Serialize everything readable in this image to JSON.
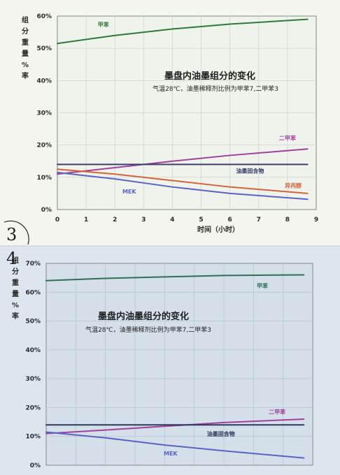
{
  "page": {
    "figure_marker_1": "3",
    "figure_marker_2": "4"
  },
  "chart_data": [
    {
      "type": "line",
      "ylabel": "组分重量%率",
      "xlabel": "时间（小时）",
      "ylim": [
        0,
        60
      ],
      "xlim": [
        0,
        9
      ],
      "yticks": [
        "0%",
        "10%",
        "20%",
        "30%",
        "40%",
        "50%",
        "60%"
      ],
      "xticks": [
        "0",
        "1",
        "2",
        "3",
        "4",
        "5",
        "6",
        "7",
        "8",
        "9"
      ],
      "grid": true,
      "annotation_title": "墨盘内油墨组分的变化",
      "annotation_subtitle": "气温28℃，油墨稀释剂比例为甲苯7,二甲苯3",
      "series": [
        {
          "name": "甲苯",
          "color": "#2e7a3a",
          "x": [
            0,
            2,
            4,
            6,
            8.7
          ],
          "y": [
            51.5,
            54,
            56,
            57.5,
            59
          ]
        },
        {
          "name": "二甲苯",
          "color": "#a0409a",
          "x": [
            0,
            2,
            4,
            6,
            8.7
          ],
          "y": [
            11,
            13,
            15,
            16.8,
            18.8
          ]
        },
        {
          "name": "油墨固含物",
          "color": "#3a3f6e",
          "x": [
            0,
            8.7
          ],
          "y": [
            14,
            14
          ]
        },
        {
          "name": "异丙醇",
          "color": "#d2643a",
          "x": [
            0,
            2,
            4,
            6,
            8.7
          ],
          "y": [
            12.5,
            11,
            9,
            7,
            5
          ]
        },
        {
          "name": "MEK",
          "color": "#5a62c8",
          "x": [
            0,
            2,
            4,
            6,
            8.7
          ],
          "y": [
            11.5,
            9.5,
            7,
            5,
            3.2
          ]
        }
      ],
      "label_positions": [
        {
          "series": "甲苯",
          "x": 1.6,
          "y": 56.8
        },
        {
          "series": "二甲苯",
          "x": 8.0,
          "y": 21.6
        },
        {
          "series": "油墨固含物",
          "x": 6.7,
          "y": 11.4
        },
        {
          "series": "异丙醇",
          "x": 8.2,
          "y": 6.8
        },
        {
          "series": "MEK",
          "x": 2.5,
          "y": 5.0
        }
      ]
    },
    {
      "type": "line",
      "ylabel": "组分重量%率",
      "xlabel": "",
      "ylim": [
        0,
        70
      ],
      "xlim": [
        0,
        9
      ],
      "yticks": [
        "0%",
        "10%",
        "20%",
        "30%",
        "40%",
        "50%",
        "60%",
        "70%"
      ],
      "xticks": [],
      "grid": true,
      "annotation_title": "墨盘内油墨组分的变化",
      "annotation_subtitle": "气温28℃，油墨稀释剂比例为甲苯7,二甲苯3",
      "series": [
        {
          "name": "甲苯",
          "color": "#2e6f56",
          "x": [
            0,
            2,
            4,
            6,
            8.7
          ],
          "y": [
            64,
            64.8,
            65.3,
            65.8,
            66
          ]
        },
        {
          "name": "二甲苯",
          "color": "#a0409a",
          "x": [
            0,
            2,
            4,
            6,
            8.7
          ],
          "y": [
            11,
            12.2,
            13.5,
            14.8,
            16
          ]
        },
        {
          "name": "油墨固含物",
          "color": "#2c3a5e",
          "x": [
            0,
            8.7
          ],
          "y": [
            14,
            14
          ]
        },
        {
          "name": "MEK",
          "color": "#5a62c8",
          "x": [
            0,
            2,
            4,
            6,
            8.7
          ],
          "y": [
            11.5,
            9.5,
            7,
            5,
            2.5
          ]
        }
      ],
      "label_positions": [
        {
          "series": "甲苯",
          "x": 7.3,
          "y": 61.5
        },
        {
          "series": "二甲苯",
          "x": 7.8,
          "y": 17.8
        },
        {
          "series": "油墨固含物",
          "x": 5.9,
          "y": 10.2
        },
        {
          "series": "MEK",
          "x": 4.2,
          "y": 3.4
        }
      ]
    }
  ]
}
